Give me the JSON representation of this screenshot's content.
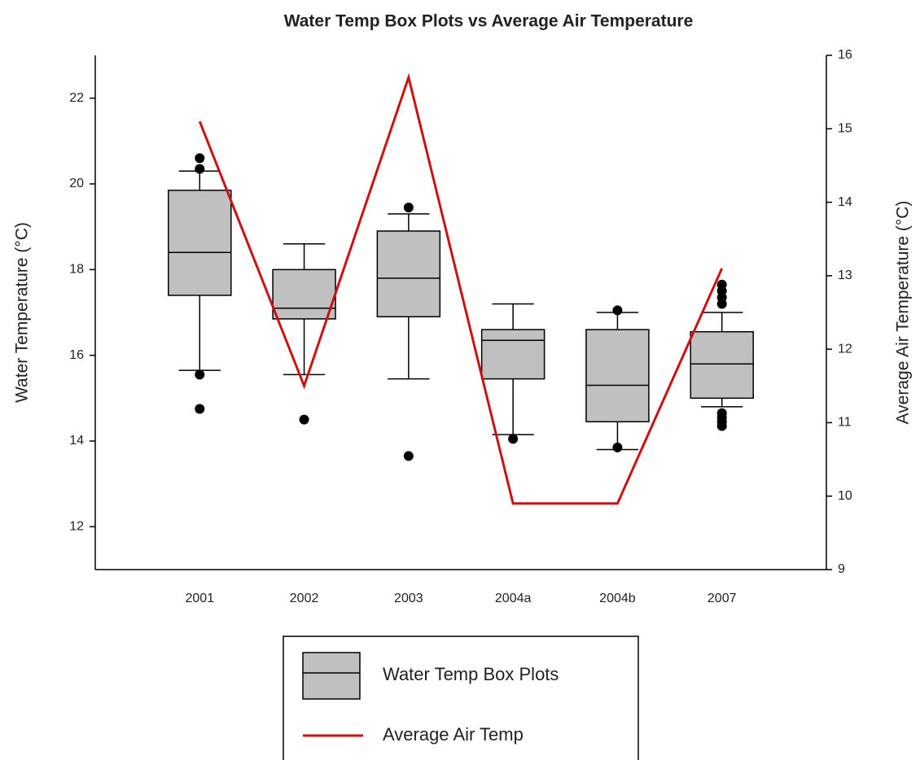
{
  "chart_data": {
    "type": "box",
    "title": "Water Temp Box Plots vs Average Air Temperature",
    "ylabel": "Water Temperature (°C)",
    "y2label": "Average Air Temperature (°C)",
    "categories": [
      "2001",
      "2002",
      "2003",
      "2004a",
      "2004b",
      "2007"
    ],
    "ylim": [
      11,
      23
    ],
    "yticks": [
      12,
      14,
      16,
      18,
      20,
      22
    ],
    "y2lim": [
      9,
      16
    ],
    "y2ticks": [
      9,
      10,
      11,
      12,
      13,
      14,
      15,
      16
    ],
    "series": [
      {
        "name": "Water Temp Box Plots",
        "type": "box",
        "color": "#c0c0c0",
        "whislo": [
          15.65,
          15.55,
          15.45,
          14.15,
          13.8,
          14.8
        ],
        "q1": [
          17.4,
          16.85,
          16.9,
          15.45,
          14.45,
          15.0
        ],
        "median": [
          18.4,
          17.1,
          17.8,
          16.35,
          15.3,
          15.8
        ],
        "q3": [
          19.85,
          18.0,
          18.9,
          16.6,
          16.6,
          16.55
        ],
        "whishi": [
          20.3,
          18.6,
          19.3,
          17.2,
          17.0,
          17.0
        ],
        "outliers": [
          [
            14.75,
            15.55,
            20.35,
            20.6
          ],
          [
            14.5
          ],
          [
            13.65,
            19.45
          ],
          [
            14.05
          ],
          [
            13.85,
            17.05
          ],
          [
            14.35,
            14.45,
            14.55,
            14.65,
            17.2,
            17.35,
            17.5,
            17.65
          ]
        ]
      },
      {
        "name": "Average Air Temp",
        "type": "line",
        "axis": "y2",
        "color": "#cc1111",
        "values": [
          15.1,
          11.5,
          15.7,
          9.9,
          9.9,
          13.1
        ]
      }
    ]
  }
}
